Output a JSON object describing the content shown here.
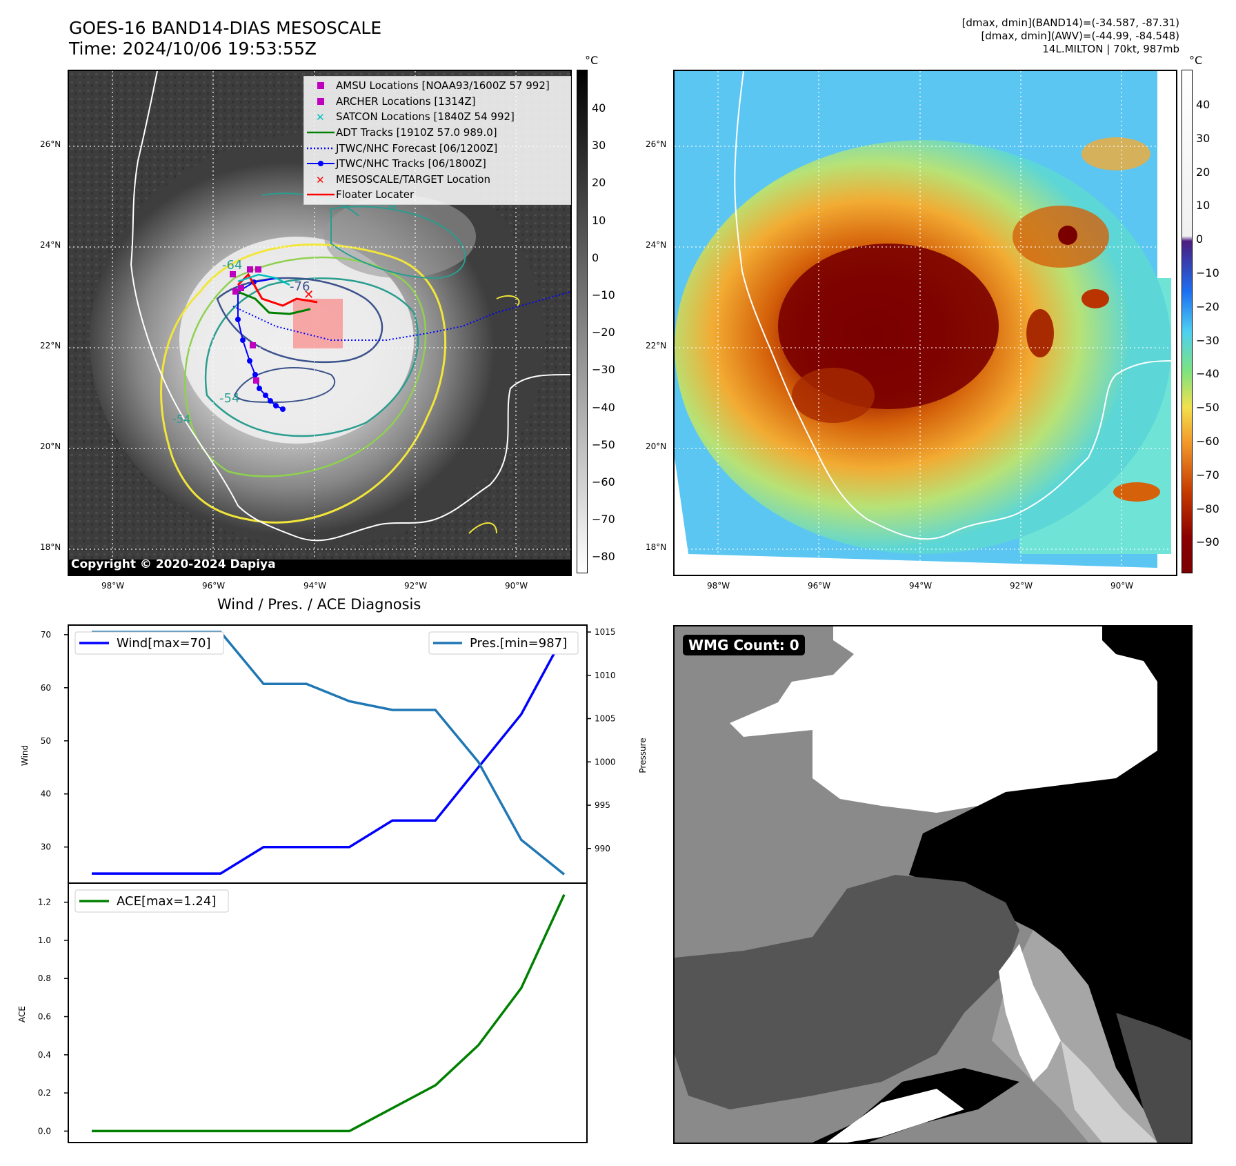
{
  "header": {
    "title_line1": "GOES-16 BAND14-DIAS MESOSCALE",
    "title_line2": "Time: 2024/10/06 19:53:55Z",
    "info_line1": "[dmax, dmin](BAND14)=(-34.587, -87.31)",
    "info_line2": "[dmax, dmin](AWV)=(-44.99, -84.548)",
    "info_line3": "14L.MILTON | 70kt, 987mb"
  },
  "maps": {
    "lat_labels": [
      "26°N",
      "24°N",
      "22°N",
      "20°N",
      "18°N"
    ],
    "lon_labels": [
      "98°W",
      "96°W",
      "94°W",
      "92°W",
      "90°W"
    ],
    "copyright": "Copyright © 2020-2024 Dapiya",
    "colorbar_unit": "°C",
    "left_colorbar_ticks": [
      "40",
      "30",
      "20",
      "10",
      "0",
      "−10",
      "−20",
      "−30",
      "−40",
      "−50",
      "−60",
      "−70",
      "−80"
    ],
    "right_colorbar_ticks": [
      "40",
      "30",
      "20",
      "10",
      "0",
      "−10",
      "−20",
      "−30",
      "−40",
      "−50",
      "−60",
      "−70",
      "−80",
      "−90"
    ],
    "contour_labels": [
      "-64",
      "-76",
      "-54",
      "-54",
      "-54"
    ],
    "legend": [
      {
        "label": "AMSU Locations [NOAA93/1600Z 57 992]",
        "symbol": "square",
        "color": "#bf00bf"
      },
      {
        "label": "ARCHER Locations [1314Z]",
        "symbol": "square",
        "color": "#bf00bf"
      },
      {
        "label": "SATCON Locations [1840Z 54 992]",
        "symbol": "x",
        "color": "#00bfbf"
      },
      {
        "label": "ADT Tracks [1910Z 57.0 989.0]",
        "symbol": "line",
        "color": "#008000"
      },
      {
        "label": "JTWC/NHC Forecast [06/1200Z]",
        "symbol": "dotted",
        "color": "#0000ff"
      },
      {
        "label": "JTWC/NHC Tracks [06/1800Z]",
        "symbol": "line-dot",
        "color": "#0000ff"
      },
      {
        "label": "MESOSCALE/TARGET Location",
        "symbol": "x",
        "color": "#ff0000"
      },
      {
        "label": "Floater Locater",
        "symbol": "line",
        "color": "#ff0000"
      }
    ]
  },
  "diagnosis": {
    "title": "Wind / Pres. / ACE Diagnosis",
    "wind_ylabel": "Wind",
    "pres_ylabel": "Pressure",
    "ace_ylabel": "ACE",
    "wind_legend": "Wind[max=70]",
    "pres_legend": "Pres.[min=987]",
    "ace_legend": "ACE[max=1.24]",
    "colors": {
      "wind": "#0000ff",
      "pres": "#1f77b4",
      "ace": "#008000"
    }
  },
  "chart_data": [
    {
      "type": "line",
      "title": "Wind / Pres. / ACE Diagnosis",
      "x": [
        0,
        1,
        2,
        3,
        4,
        5,
        6,
        7,
        8,
        9,
        10,
        11
      ],
      "series": [
        {
          "name": "Wind[max=70]",
          "axis": "left",
          "values": [
            25,
            25,
            25,
            25,
            30,
            30,
            30,
            35,
            35,
            45,
            55,
            70
          ]
        },
        {
          "name": "Pres.[min=987]",
          "axis": "right",
          "values": [
            1015,
            1015,
            1015,
            1015,
            1009,
            1009,
            1007,
            1006,
            1006,
            1000,
            991,
            987
          ]
        }
      ],
      "ylabel": "Wind",
      "ylabel_right": "Pressure",
      "ylim": [
        23.2,
        71.8
      ],
      "ylim_right": [
        986,
        1015.8
      ],
      "yticks": [
        30,
        40,
        50,
        60,
        70
      ],
      "yticks_right": [
        990,
        995,
        1000,
        1005,
        1010,
        1015
      ],
      "grid": false,
      "legend": [
        "upper-left",
        "upper-right"
      ]
    },
    {
      "type": "line",
      "x": [
        0,
        1,
        2,
        3,
        4,
        5,
        6,
        7,
        8,
        9,
        10,
        11
      ],
      "series": [
        {
          "name": "ACE[max=1.24]",
          "values": [
            0,
            0,
            0,
            0,
            0,
            0,
            0,
            0.12,
            0.24,
            0.45,
            0.75,
            1.24
          ]
        }
      ],
      "ylabel": "ACE",
      "ylim": [
        -0.06,
        1.3
      ],
      "yticks": [
        0.0,
        0.2,
        0.4,
        0.6,
        0.8,
        1.0,
        1.2
      ],
      "grid": false,
      "legend": "upper-left"
    }
  ],
  "wmg": {
    "badge": "WMG Count: 0"
  }
}
